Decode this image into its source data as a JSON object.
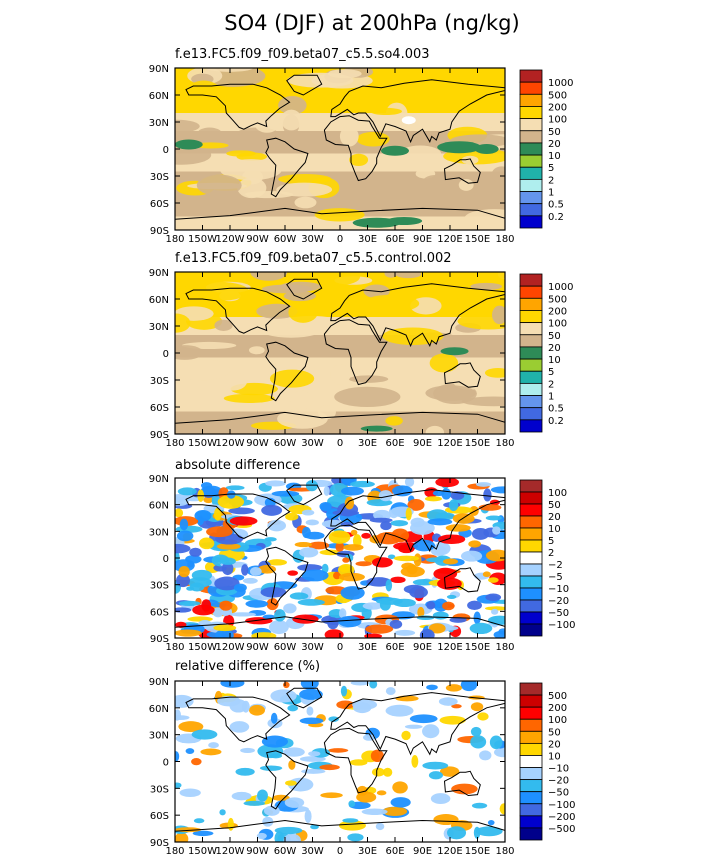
{
  "title": "SO4 (DJF) at 200hPa (ng/kg)",
  "chart_data": [
    {
      "type": "heatmap",
      "title": "f.e13.FC5.f09_f09.beta07_c5.5.so4.003",
      "region": "global",
      "lat_labels": [
        "90N",
        "60N",
        "30N",
        "0",
        "30S",
        "60S",
        "90S"
      ],
      "lon_labels": [
        "180",
        "150W",
        "120W",
        "90W",
        "60W",
        "30W",
        "0",
        "30E",
        "60E",
        "90E",
        "120E",
        "150E",
        "180"
      ],
      "legend_levels": [
        "1000",
        "500",
        "200",
        "100",
        "50",
        "20",
        "10",
        "5",
        "2",
        "1",
        "0.5",
        "0.2"
      ],
      "legend_colors": [
        "#b22222",
        "#ff4500",
        "#ffa500",
        "#ffd700",
        "#f5deb3",
        "#d2b48c",
        "#2e8b57",
        "#9acd32",
        "#20b2aa",
        "#afeeee",
        "#6495ed",
        "#4169e1",
        "#0000cd"
      ],
      "bands": [
        {
          "lat": [
            75,
            90
          ],
          "level": "100-200"
        },
        {
          "lat": [
            40,
            75
          ],
          "level": "100-200"
        },
        {
          "lat": [
            20,
            40
          ],
          "level": "50-100"
        },
        {
          "lat": [
            -5,
            20
          ],
          "level": "20-50"
        },
        {
          "lat": [
            -25,
            -5
          ],
          "level": "50-100"
        },
        {
          "lat": [
            -50,
            -25
          ],
          "level": "20-50"
        },
        {
          "lat": [
            -75,
            -50
          ],
          "level": "20-50"
        },
        {
          "lat": [
            -90,
            -75
          ],
          "level": "50-100"
        }
      ]
    },
    {
      "type": "heatmap",
      "title": "f.e13.FC5.f09_f09.beta07_c5.5.control.002",
      "region": "global",
      "lat_labels": [
        "90N",
        "60N",
        "30N",
        "0",
        "30S",
        "60S",
        "90S"
      ],
      "lon_labels": [
        "180",
        "150W",
        "120W",
        "90W",
        "60W",
        "30W",
        "0",
        "30E",
        "60E",
        "90E",
        "120E",
        "150E",
        "180"
      ],
      "legend_levels": [
        "1000",
        "500",
        "200",
        "100",
        "50",
        "20",
        "10",
        "5",
        "2",
        "1",
        "0.5",
        "0.2"
      ],
      "legend_colors": [
        "#b22222",
        "#ff4500",
        "#ffa500",
        "#ffd700",
        "#f5deb3",
        "#d2b48c",
        "#2e8b57",
        "#9acd32",
        "#20b2aa",
        "#afeeee",
        "#6495ed",
        "#4169e1",
        "#0000cd"
      ],
      "bands": [
        {
          "lat": [
            40,
            90
          ],
          "level": "100-200"
        },
        {
          "lat": [
            20,
            40
          ],
          "level": "50-100"
        },
        {
          "lat": [
            -5,
            20
          ],
          "level": "20-50"
        },
        {
          "lat": [
            -25,
            -5
          ],
          "level": "50-100"
        },
        {
          "lat": [
            -65,
            -25
          ],
          "level": "50-100"
        },
        {
          "lat": [
            -90,
            -65
          ],
          "level": "20-50"
        }
      ]
    },
    {
      "type": "heatmap",
      "title": "absolute difference",
      "region": "global",
      "lat_labels": [
        "90N",
        "60N",
        "30N",
        "0",
        "30S",
        "60S",
        "90S"
      ],
      "lon_labels": [
        "180",
        "150W",
        "120W",
        "90W",
        "60W",
        "30W",
        "0",
        "30E",
        "60E",
        "90E",
        "120E",
        "150E",
        "180"
      ],
      "legend_levels": [
        "100",
        "50",
        "20",
        "10",
        "5",
        "2",
        "−2",
        "−5",
        "−10",
        "−20",
        "−50",
        "−100"
      ],
      "legend_colors": [
        "#a52a2a",
        "#cd0000",
        "#ff0000",
        "#ff6600",
        "#ffa500",
        "#ffd700",
        "#ffffff",
        "#a6d2ff",
        "#33bbee",
        "#1e90ff",
        "#4169e1",
        "#0000cd",
        "#00008b"
      ],
      "pattern": "mixed positive (orange/red) over Africa, Indian Ocean and South Atlantic; negative (blue) over oceans"
    },
    {
      "type": "heatmap",
      "title": "relative difference (%)",
      "region": "global",
      "lat_labels": [
        "90N",
        "60N",
        "30N",
        "0",
        "30S",
        "60S",
        "90S"
      ],
      "lon_labels": [
        "180",
        "150W",
        "120W",
        "90W",
        "60W",
        "30W",
        "0",
        "30E",
        "60E",
        "90E",
        "120E",
        "150E",
        "180"
      ],
      "legend_levels": [
        "500",
        "200",
        "100",
        "50",
        "20",
        "10",
        "−10",
        "−20",
        "−50",
        "−100",
        "−200",
        "−500"
      ],
      "legend_colors": [
        "#a52a2a",
        "#cd0000",
        "#ff0000",
        "#ff6600",
        "#ffa500",
        "#ffd700",
        "#ffffff",
        "#a6d2ff",
        "#33bbee",
        "#1e90ff",
        "#4169e1",
        "#0000cd",
        "#00008b"
      ],
      "pattern": "mostly near zero (white); positive over Africa/Indian Ocean, negative patches over oceans"
    }
  ]
}
